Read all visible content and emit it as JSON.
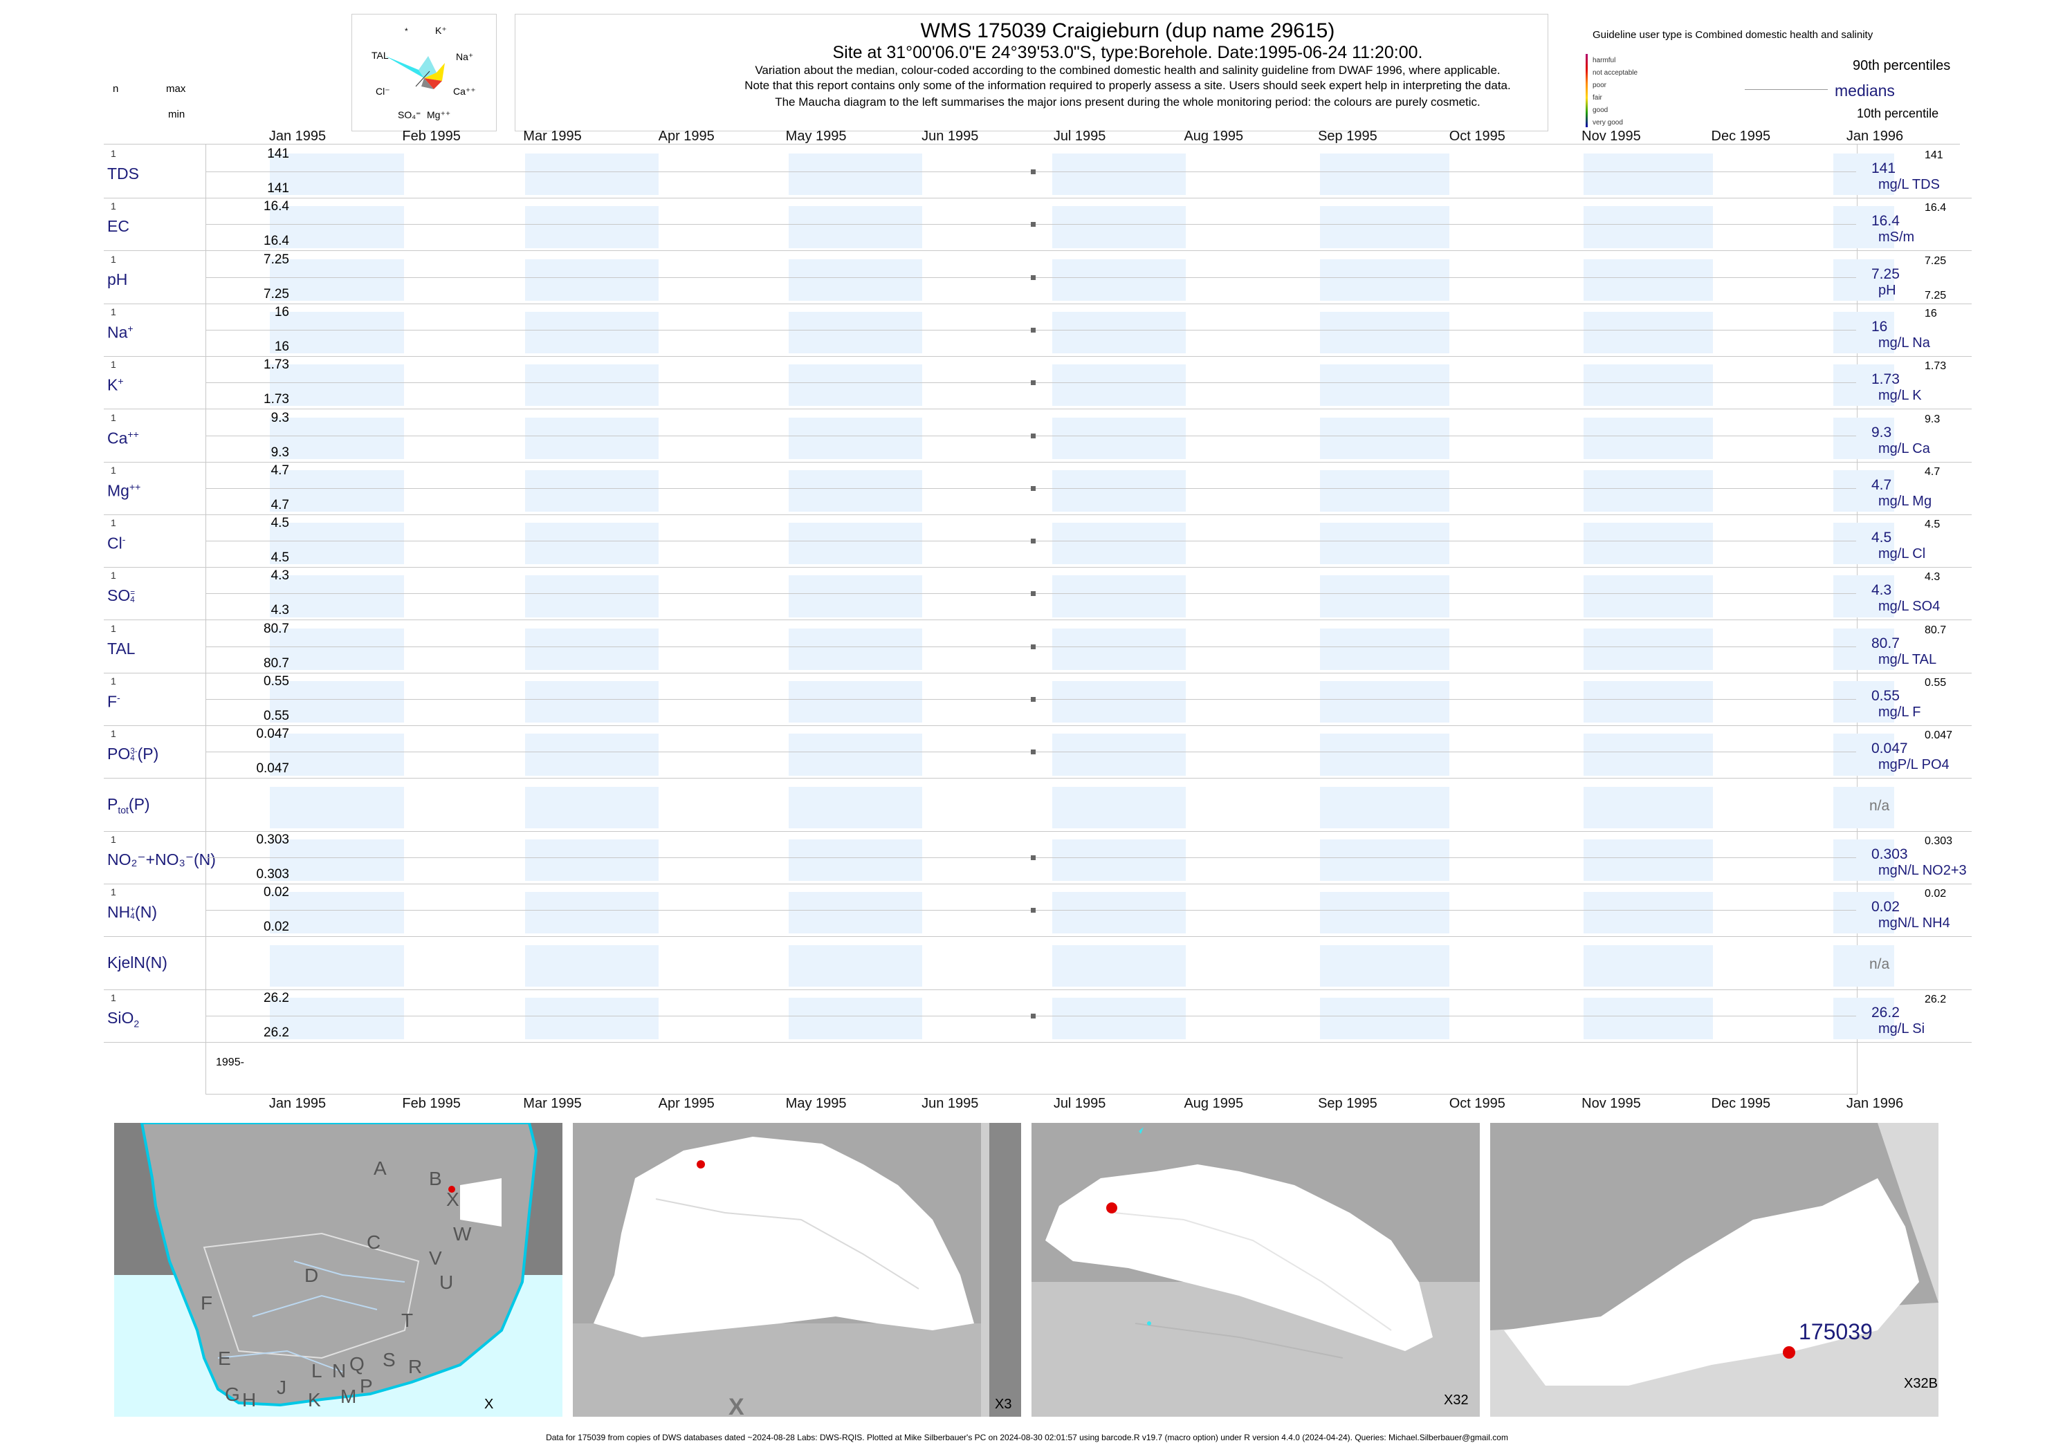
{
  "header": {
    "title": "WMS 175039  Craigieburn (dup name 29615)",
    "subtitle": "Site at 31°00'06.0\"E 24°39'53.0\"S, type:Borehole. Date:1995-06-24 11:20:00.",
    "notes": [
      "Variation about the median,  colour-coded according to the combined domestic health and salinity guideline from DWAF 1996, where applicable.",
      "Note that this report contains only some of the information required to properly assess a site. Users should seek expert help in interpreting the data.",
      "The Maucha diagram to the left summarises the major ions present during the whole monitoring period: the colours are purely cosmetic."
    ],
    "col_n": "n",
    "col_max": "max",
    "col_min": "min"
  },
  "maucha": {
    "labels": [
      "*",
      "K⁺",
      "TAL",
      "Na⁺",
      "Cl⁻",
      "Ca⁺⁺",
      "SO₄⁼",
      "Mg⁺⁺"
    ]
  },
  "guideline": {
    "title": "Guideline user type is Combined domestic health and salinity",
    "classes": [
      {
        "label": "harmful",
        "color": "#b0006e"
      },
      {
        "label": "not acceptable",
        "color": "#e00000"
      },
      {
        "label": "poor",
        "color": "#ff8a00"
      },
      {
        "label": "fair",
        "color": "#ffd800"
      },
      {
        "label": "good",
        "color": "#22a000"
      },
      {
        "label": "very good",
        "color": "#0000b0"
      }
    ],
    "p90": "90th percentiles",
    "median": "medians",
    "p10": "10th percentile"
  },
  "chart_data": {
    "type": "scatter",
    "x_axis_ticks": [
      "Jan 1995",
      "Feb 1995",
      "Mar 1995",
      "Apr 1995",
      "May 1995",
      "Jun 1995",
      "Jul 1995",
      "Aug 1995",
      "Sep 1995",
      "Oct 1995",
      "Nov 1995",
      "Dec 1995",
      "Jan 1996"
    ],
    "x_range": [
      "1995-01-01",
      "1996-01-01"
    ],
    "year_label": "1995-",
    "sample_date": "1995-06-24",
    "series": [
      {
        "name": "TDS",
        "sub": "",
        "sup": "",
        "n": "1",
        "max": "141",
        "min": "141",
        "value": 141,
        "median": "141",
        "unit": "mg/L TDS"
      },
      {
        "name": "EC",
        "sub": "",
        "sup": "",
        "n": "1",
        "max": "16.4",
        "min": "16.4",
        "value": 16.4,
        "median": "16.4",
        "unit": "mS/m"
      },
      {
        "name": "pH",
        "sub": "",
        "sup": "",
        "n": "1",
        "max": "7.25",
        "min": "7.25",
        "value": 7.25,
        "median": "7.25",
        "unit": "pH"
      },
      {
        "name": "Na",
        "sub": "",
        "sup": "+",
        "n": "1",
        "max": "16",
        "min": "16",
        "value": 16,
        "median": "16",
        "unit": "mg/L Na"
      },
      {
        "name": "K",
        "sub": "",
        "sup": "+",
        "n": "1",
        "max": "1.73",
        "min": "1.73",
        "value": 1.73,
        "median": "1.73",
        "unit": "mg/L K"
      },
      {
        "name": "Ca",
        "sub": "",
        "sup": "++",
        "n": "1",
        "max": "9.3",
        "min": "9.3",
        "value": 9.3,
        "median": "9.3",
        "unit": "mg/L Ca"
      },
      {
        "name": "Mg",
        "sub": "",
        "sup": "++",
        "n": "1",
        "max": "4.7",
        "min": "4.7",
        "value": 4.7,
        "median": "4.7",
        "unit": "mg/L Mg"
      },
      {
        "name": "Cl",
        "sub": "",
        "sup": "-",
        "n": "1",
        "max": "4.5",
        "min": "4.5",
        "value": 4.5,
        "median": "4.5",
        "unit": "mg/L Cl"
      },
      {
        "name": "SO",
        "sub": "4",
        "sup": "=",
        "n": "1",
        "max": "4.3",
        "min": "4.3",
        "value": 4.3,
        "median": "4.3",
        "unit": "mg/L SO4"
      },
      {
        "name": "TAL",
        "sub": "",
        "sup": "",
        "n": "1",
        "max": "80.7",
        "min": "80.7",
        "value": 80.7,
        "median": "80.7",
        "unit": "mg/L TAL"
      },
      {
        "name": "F",
        "sub": "",
        "sup": "-",
        "n": "1",
        "max": "0.55",
        "min": "0.55",
        "value": 0.55,
        "median": "0.55",
        "unit": "mg/L F"
      },
      {
        "name": "PO",
        "sub": "4",
        "sup": "3-",
        "suffix": "(P)",
        "n": "1",
        "max": "0.047",
        "min": "0.047",
        "value": 0.047,
        "median": "0.047",
        "unit": "mgP/L PO4"
      },
      {
        "name": "P",
        "sub": "tot",
        "sup": "",
        "suffix": "(P)",
        "n": "",
        "max": "",
        "min": "",
        "value": null,
        "median": "",
        "unit": "",
        "na": "n/a"
      },
      {
        "name": "NO₂⁻+NO₃⁻(N)",
        "sub": "",
        "sup": "",
        "n": "1",
        "max": "0.303",
        "min": "0.303",
        "value": 0.303,
        "median": "0.303",
        "unit": "mgN/L NO2+3"
      },
      {
        "name": "NH",
        "sub": "4",
        "sup": "+",
        "suffix": "(N)",
        "n": "1",
        "max": "0.02",
        "min": "0.02",
        "value": 0.02,
        "median": "0.02",
        "unit": "mgN/L NH4"
      },
      {
        "name": "KjelN(N)",
        "sub": "",
        "sup": "",
        "n": "",
        "max": "",
        "min": "",
        "value": null,
        "median": "",
        "unit": "",
        "na": "n/a"
      },
      {
        "name": "SiO",
        "sub": "2",
        "sup": "",
        "n": "1",
        "max": "26.2",
        "min": "26.2",
        "value": 26.2,
        "median": "26.2",
        "unit": "mg/L Si"
      }
    ]
  },
  "maps": {
    "panel1": {
      "letters": [
        "A",
        "B",
        "X",
        "C",
        "W",
        "D",
        "V",
        "U",
        "F",
        "T",
        "E",
        "S",
        "R",
        "L",
        "N",
        "Q",
        "G",
        "H",
        "J",
        "K",
        "M",
        "P"
      ],
      "label": "X"
    },
    "panel2": {
      "label": "X3",
      "big": "X"
    },
    "panel3": {
      "label": "X32"
    },
    "panel4": {
      "label": "X32B",
      "site": "175039"
    },
    "colors": {
      "land": "#a8a8a8",
      "catchment": "#ffffff",
      "ocean": "#d8fbff",
      "site": "#e00000"
    }
  },
  "footer": "Data for 175039 from copies of DWS databases dated ~2024-08-28 Labs: DWS-RQIS. Plotted at Mike Silberbauer's PC on 2024-08-30 02:01:57 using barcode.R v19.7 (macro option) under R version 4.4.0 (2024-04-24). Queries: Michael.Silberbauer@gmail.com"
}
